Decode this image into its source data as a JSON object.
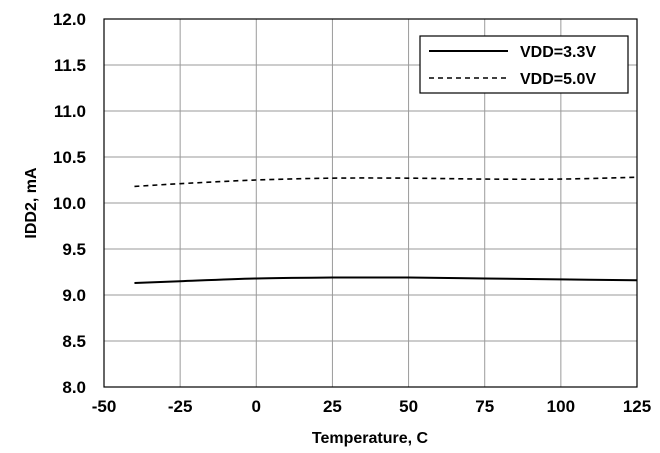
{
  "chart_data": {
    "type": "line",
    "xlabel": "Temperature, C",
    "ylabel": "IDD2, mA",
    "xlim": [
      -50,
      125
    ],
    "ylim": [
      8.0,
      12.0
    ],
    "x_ticks": [
      "-50",
      "-25",
      "0",
      "25",
      "50",
      "75",
      "100",
      "125"
    ],
    "y_ticks": [
      "8.0",
      "8.5",
      "9.0",
      "9.5",
      "10.0",
      "10.5",
      "11.0",
      "11.5",
      "12.0"
    ],
    "grid": true,
    "legend_position": "top-right",
    "series": [
      {
        "name": "VDD=3.3V",
        "line_style": "solid",
        "color": "#000000",
        "x": [
          -40,
          -25,
          0,
          25,
          35,
          50,
          75,
          100,
          125
        ],
        "y": [
          9.13,
          9.15,
          9.18,
          9.19,
          9.19,
          9.19,
          9.18,
          9.17,
          9.16
        ]
      },
      {
        "name": "VDD=5.0V",
        "line_style": "dashed",
        "color": "#000000",
        "x": [
          -40,
          -25,
          0,
          25,
          50,
          75,
          100,
          125
        ],
        "y": [
          10.18,
          10.21,
          10.25,
          10.27,
          10.27,
          10.26,
          10.26,
          10.28
        ]
      }
    ]
  }
}
